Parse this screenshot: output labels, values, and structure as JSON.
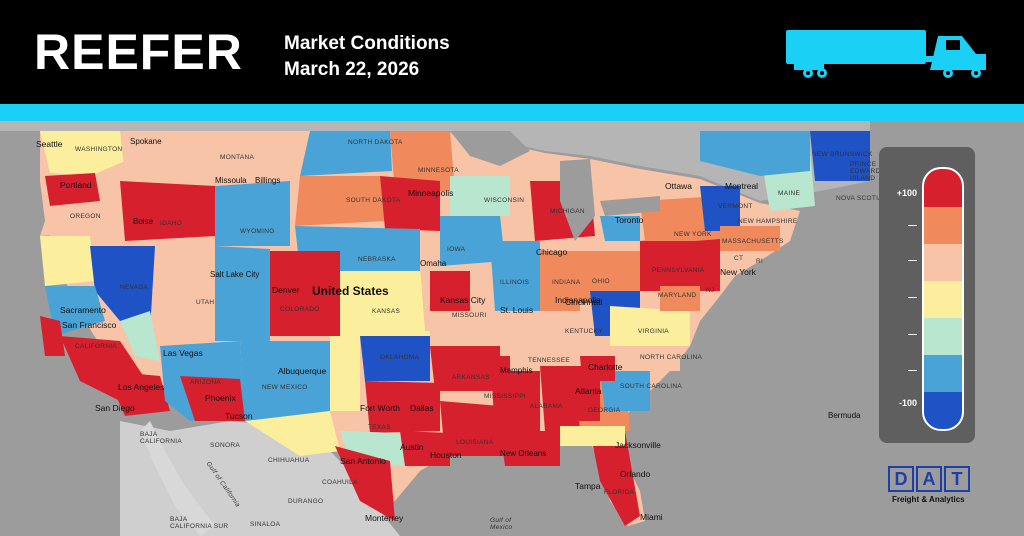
{
  "header": {
    "title": "REEFER",
    "subtitle_line1": "Market Conditions",
    "subtitle_line2": "March 22, 2026",
    "truck_icon": "truck-icon"
  },
  "colors": {
    "header_bg": "#000000",
    "accent_stripe": "#1ad0f5",
    "scale": [
      "#d6202e",
      "#f08a5d",
      "#f7c4a8",
      "#fbef9e",
      "#b9e6cf",
      "#4aa3d6",
      "#1f52c4"
    ]
  },
  "legend": {
    "top_label": "+100",
    "bottom_label": "-100",
    "tick_labels": [
      "+100",
      "—",
      "—",
      "—",
      "—",
      "—",
      "-100"
    ]
  },
  "map": {
    "country_label": "United States",
    "cities": [
      "Seattle",
      "Spokane",
      "Portland",
      "Boise",
      "Sacramento",
      "San Francisco",
      "Las Vegas",
      "Los Angeles",
      "San Diego",
      "Phoenix",
      "Tucson",
      "Salt Lake City",
      "Denver",
      "Albuquerque",
      "Billings",
      "Missoula",
      "Minneapolis",
      "Omaha",
      "Kansas City",
      "St. Louis",
      "Chicago",
      "Indianapolis",
      "Cincinnati",
      "Memphis",
      "Fort Worth",
      "Dallas",
      "Austin",
      "San Antonio",
      "Houston",
      "New Orleans",
      "Atlanta",
      "Charlotte",
      "Jacksonville",
      "Orlando",
      "Tampa",
      "Miami",
      "Toronto",
      "Ottawa",
      "Montreal",
      "New York",
      "Bermuda",
      "Monterrey"
    ],
    "states": [
      "WASHINGTON",
      "MONTANA",
      "NORTH DAKOTA",
      "MINNESOTA",
      "OREGON",
      "IDAHO",
      "SOUTH DAKOTA",
      "WYOMING",
      "WISCONSIN",
      "MICHIGAN",
      "NEVADA",
      "UTAH",
      "COLORADO",
      "NEBRASKA",
      "IOWA",
      "ILLINOIS",
      "INDIANA",
      "OHIO",
      "PENNSYLVANIA",
      "NEW YORK",
      "KANSAS",
      "MISSOURI",
      "KENTUCKY",
      "VIRGINIA",
      "MARYLAND",
      "CALIFORNIA",
      "ARIZONA",
      "NEW MEXICO",
      "OKLAHOMA",
      "ARKANSAS",
      "TENNESSEE",
      "NORTH CAROLINA",
      "SOUTH CAROLINA",
      "MISSISSIPPI",
      "ALABAMA",
      "GEORGIA",
      "LOUISIANA",
      "TEXAS",
      "FLORIDA",
      "MAINE",
      "VERMONT",
      "NEW HAMPSHIRE",
      "MASSACHUSETTS",
      "CT",
      "RI",
      "NJ",
      "NEW BRUNSWICK",
      "PRINCE EDWARD ISLAND",
      "NOVA SCOTIA",
      "BAJA CALIFORNIA",
      "BAJA CALIFORNIA SUR",
      "SONORA",
      "CHIHUAHUA",
      "COAHUILA",
      "DURANGO",
      "SINALOA",
      "Gulf of California",
      "Gulf of Mexico"
    ]
  },
  "brand": {
    "logo_letters": [
      "D",
      "A",
      "T"
    ],
    "tagline": "Freight & Analytics"
  }
}
